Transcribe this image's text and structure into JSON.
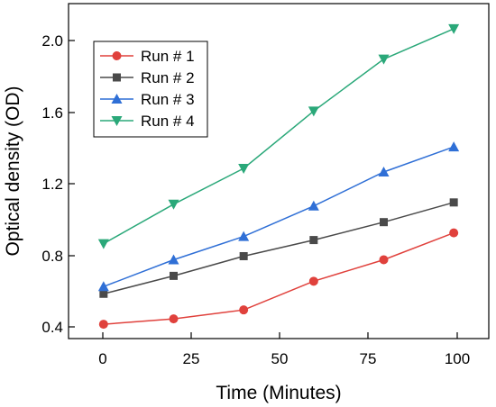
{
  "chart_data": {
    "type": "line",
    "title": "",
    "xlabel": "Time (Minutes)",
    "ylabel": "Optical density (OD)",
    "x": [
      0,
      20,
      40,
      60,
      80,
      100
    ],
    "xlim": [
      -10,
      110
    ],
    "ylim": [
      0.31,
      2.18
    ],
    "xticks": [
      "0",
      "25",
      "50",
      "75",
      "100"
    ],
    "yticks": [
      "0.4",
      "0.8",
      "1.2",
      "1.6",
      "2.0"
    ],
    "grid": false,
    "legend_position": "top-left",
    "series": [
      {
        "name": "Run # 1",
        "color": "#e0413c",
        "marker": "circle",
        "values": [
          0.39,
          0.42,
          0.47,
          0.63,
          0.75,
          0.9
        ]
      },
      {
        "name": "Run # 2",
        "color": "#4a4a4a",
        "marker": "square",
        "values": [
          0.56,
          0.66,
          0.77,
          0.86,
          0.96,
          1.07
        ]
      },
      {
        "name": "Run # 3",
        "color": "#2f6fd6",
        "marker": "triangle-up",
        "values": [
          0.6,
          0.75,
          0.88,
          1.05,
          1.24,
          1.38
        ]
      },
      {
        "name": "Run # 4",
        "color": "#2aa879",
        "marker": "triangle-down",
        "values": [
          0.84,
          1.06,
          1.26,
          1.58,
          1.87,
          2.04
        ]
      }
    ]
  }
}
